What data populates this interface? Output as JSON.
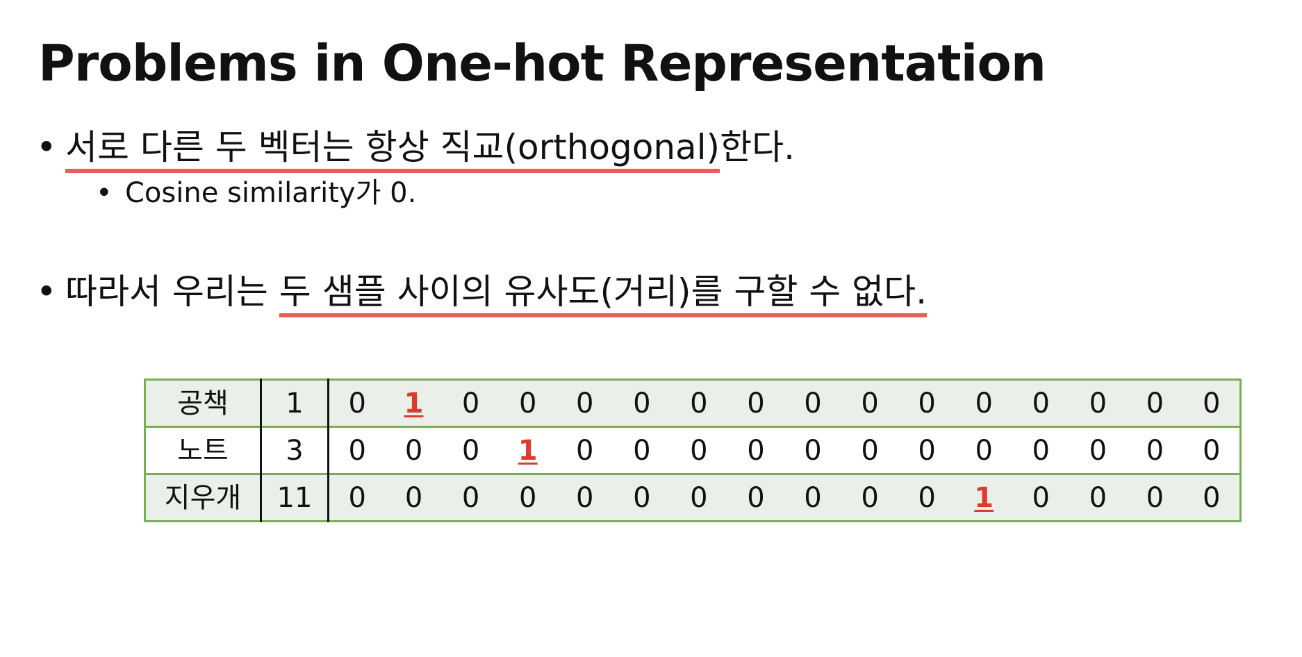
{
  "slide": {
    "title": "Problems in One-hot Representation"
  },
  "bullets": {
    "b1": {
      "marker": "•",
      "highlighted": "서로 다른 두 벡터는 항상 직교(orthogonal)",
      "rest": "한다."
    },
    "b2": {
      "marker": "•",
      "text": "Cosine similarity가 0."
    },
    "b3": {
      "marker": "•",
      "prefix": "따라서 우리는 ",
      "highlighted": "두 샘플 사이의 유사도(거리)를 구할 수 없다."
    }
  },
  "colors": {
    "highlight_underline": "#e8605a",
    "table_border": "#78ae55",
    "table_row_shade": "#ebefea",
    "hot_value": "#e03a2f"
  },
  "table": {
    "rows": [
      {
        "word": "공책",
        "index": "1",
        "vector": [
          "0",
          "1",
          "0",
          "0",
          "0",
          "0",
          "0",
          "0",
          "0",
          "0",
          "0",
          "0",
          "0",
          "0",
          "0",
          "0"
        ],
        "hot": 1
      },
      {
        "word": "노트",
        "index": "3",
        "vector": [
          "0",
          "0",
          "0",
          "1",
          "0",
          "0",
          "0",
          "0",
          "0",
          "0",
          "0",
          "0",
          "0",
          "0",
          "0",
          "0"
        ],
        "hot": 3
      },
      {
        "word": "지우개",
        "index": "11",
        "vector": [
          "0",
          "0",
          "0",
          "0",
          "0",
          "0",
          "0",
          "0",
          "0",
          "0",
          "0",
          "1",
          "0",
          "0",
          "0",
          "0"
        ],
        "hot": 11
      }
    ]
  }
}
